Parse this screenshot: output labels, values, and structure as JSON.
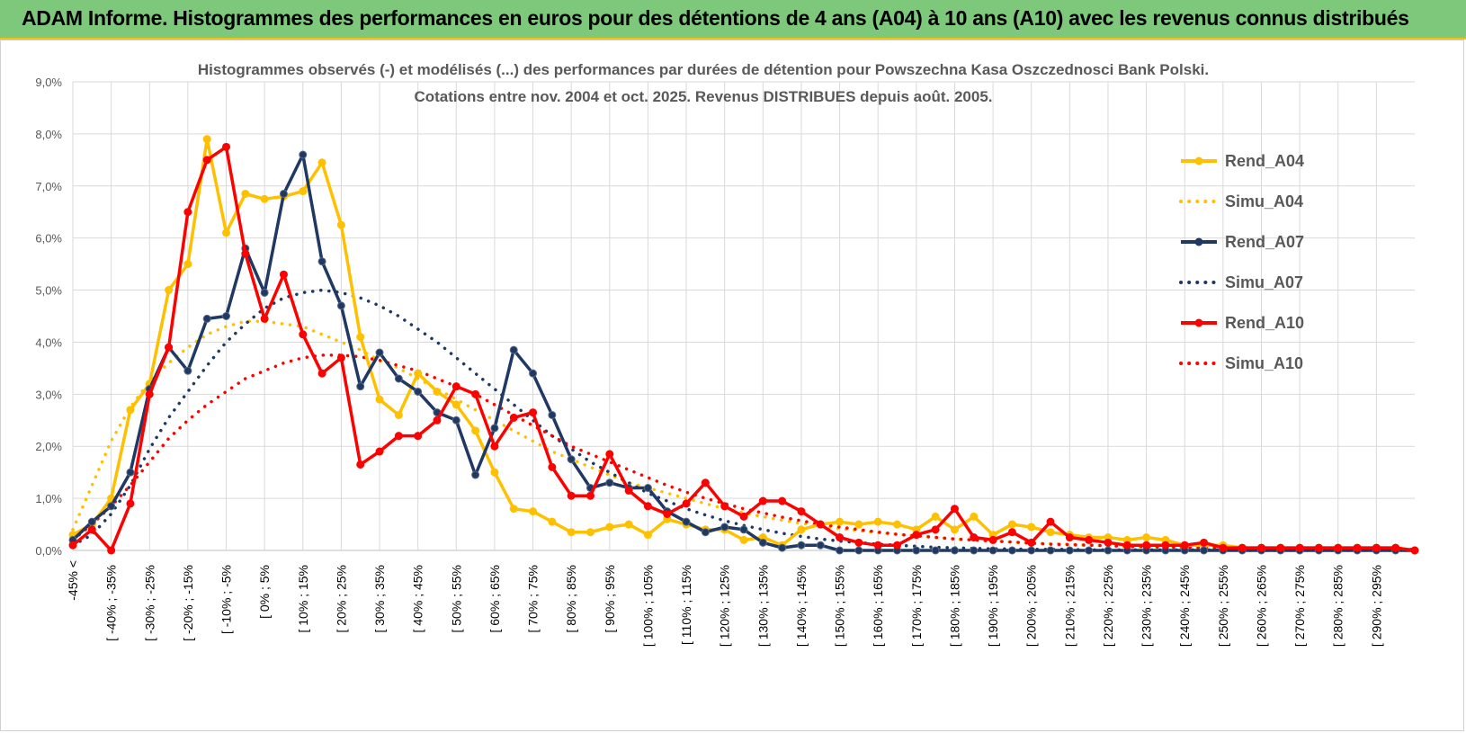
{
  "banner": {
    "title": "ADAM Informe. Histogrammes des performances en euros pour des détentions de 4 ans (A04) à 10 ans (A10) avec les revenus connus distribués"
  },
  "colors": {
    "banner_bg": "#7dc87b",
    "banner_border": "#f5c400",
    "A04": "#ffc000",
    "A07": "#1f3864",
    "A10": "#ff0000",
    "grid": "#d9d9d9"
  },
  "chart_data": {
    "type": "line",
    "title_lines": [
      "Histogrammes observés (-) et modélisés (...) des performances par durées de détention pour Powszechna Kasa Oszczednosci Bank Polski.",
      "Cotations entre nov. 2004 et oct. 2025.  Revenus DISTRIBUES depuis août. 2005."
    ],
    "ylim": [
      0,
      9
    ],
    "y_ticks": [
      "0,0%",
      "1,0%",
      "2,0%",
      "3,0%",
      "4,0%",
      "5,0%",
      "6,0%",
      "7,0%",
      "8,0%",
      "9,0%"
    ],
    "grid": true,
    "legend_position": "top-right",
    "x_labels": [
      "-45% <",
      "[ -40% ; -35%",
      "[ -30% ; -25%",
      "[ -20% ; -15%",
      "[ -10% ; -5%",
      "[ 0% ; 5%",
      "[ 10% ; 15%",
      "[ 20% ; 25%",
      "[ 30% ; 35%",
      "[ 40% ; 45%",
      "[ 50% ; 55%",
      "[ 60% ; 65%",
      "[ 70% ; 75%",
      "[ 80% ; 85%",
      "[ 90% ; 95%",
      "[ 100% ; 105%",
      "[ 110% ; 115%",
      "[ 120% ; 125%",
      "[ 130% ; 135%",
      "[ 140% ; 145%",
      "[ 150% ; 155%",
      "[ 160% ; 165%",
      "[ 170% ; 175%",
      "[ 180% ; 185%",
      "[ 190% ; 195%",
      "[ 200% ; 205%",
      "[ 210% ; 215%",
      "[ 220% ; 225%",
      "[ 230% ; 235%",
      "[ 240% ; 245%",
      "[ 250% ; 255%",
      "[ 260% ; 265%",
      "[ 270% ; 275%",
      "[ 280% ; 285%",
      "[ 290% ; 295%"
    ],
    "series": [
      {
        "name": "Rend_A04",
        "style": "solid",
        "color": "#ffc000",
        "values": [
          0.3,
          0.5,
          1.0,
          2.7,
          3.2,
          5.0,
          5.5,
          7.9,
          6.1,
          6.85,
          6.75,
          6.8,
          6.9,
          7.45,
          6.25,
          4.1,
          2.9,
          2.6,
          3.4,
          3.05,
          2.8,
          2.3,
          1.5,
          0.8,
          0.75,
          0.55,
          0.35,
          0.35,
          0.45,
          0.5,
          0.3,
          0.6,
          0.5,
          0.4,
          0.4,
          0.2,
          0.25,
          0.1,
          0.4,
          0.5,
          0.55,
          0.5,
          0.55,
          0.5,
          0.4,
          0.65,
          0.4,
          0.65,
          0.3,
          0.5,
          0.45,
          0.35,
          0.3,
          0.25,
          0.25,
          0.2,
          0.25,
          0.2,
          0.1,
          0.1,
          0.1,
          0.05,
          0.05,
          0.05,
          0.05,
          0.05,
          0.05,
          0.05,
          0.05,
          0.05,
          0.0
        ]
      },
      {
        "name": "Simu_A04",
        "style": "dotted",
        "color": "#ffc000",
        "values": [
          0.4,
          1.25,
          2.1,
          2.75,
          3.25,
          3.6,
          3.9,
          4.15,
          4.3,
          4.4,
          4.4,
          4.35,
          4.3,
          4.15,
          4.0,
          3.85,
          3.65,
          3.5,
          3.3,
          3.1,
          2.9,
          2.7,
          2.5,
          2.3,
          2.1,
          1.9,
          1.75,
          1.6,
          1.45,
          1.3,
          1.2,
          1.1,
          1.0,
          0.9,
          0.8,
          0.72,
          0.65,
          0.58,
          0.52,
          0.47,
          0.42,
          0.38,
          0.34,
          0.31,
          0.28,
          0.25,
          0.22,
          0.2,
          0.18,
          0.16,
          0.14,
          0.13,
          0.12,
          0.1,
          0.09,
          0.08,
          0.07,
          0.07,
          0.06,
          0.05,
          0.05,
          0.04,
          0.04,
          0.03,
          0.03,
          0.03,
          0.02,
          0.02,
          0.02,
          0.02,
          0.02
        ]
      },
      {
        "name": "Rend_A07",
        "style": "solid",
        "color": "#1f3864",
        "values": [
          0.2,
          0.55,
          0.85,
          1.5,
          3.1,
          3.9,
          3.45,
          4.45,
          4.5,
          5.8,
          4.95,
          6.85,
          7.6,
          5.55,
          4.7,
          3.15,
          3.8,
          3.3,
          3.05,
          2.65,
          2.5,
          1.45,
          2.35,
          3.85,
          3.4,
          2.6,
          1.75,
          1.2,
          1.3,
          1.2,
          1.2,
          0.75,
          0.55,
          0.35,
          0.45,
          0.4,
          0.15,
          0.05,
          0.1,
          0.1,
          0.0,
          0.0,
          0.0,
          0.0,
          0.0,
          0.0,
          0.0,
          0.0,
          0.0,
          0.0,
          0.0,
          0.0,
          0.0,
          0.0,
          0.0,
          0.0,
          0.0,
          0.0,
          0.0,
          0.0,
          0.0,
          0.0,
          0.0,
          0.0,
          0.0,
          0.0,
          0.0,
          0.0,
          0.0,
          0.0,
          0.0
        ]
      },
      {
        "name": "Simu_A07",
        "style": "dotted",
        "color": "#1f3864",
        "values": [
          0.1,
          0.3,
          0.7,
          1.25,
          1.95,
          2.55,
          3.05,
          3.55,
          4.0,
          4.35,
          4.65,
          4.85,
          4.95,
          5.0,
          4.95,
          4.85,
          4.7,
          4.5,
          4.25,
          4.0,
          3.7,
          3.4,
          3.1,
          2.8,
          2.5,
          2.2,
          1.95,
          1.7,
          1.5,
          1.3,
          1.1,
          0.95,
          0.8,
          0.68,
          0.57,
          0.48,
          0.4,
          0.33,
          0.27,
          0.22,
          0.18,
          0.15,
          0.12,
          0.1,
          0.08,
          0.06,
          0.05,
          0.04,
          0.03,
          0.03,
          0.02,
          0.02,
          0.02,
          0.01,
          0.01,
          0.01,
          0.01,
          0.01,
          0.01,
          0.01,
          0.01,
          0.0,
          0.0,
          0.0,
          0.0,
          0.0,
          0.0,
          0.0,
          0.0,
          0.0,
          0.0
        ]
      },
      {
        "name": "Rend_A10",
        "style": "solid",
        "color": "#ff0000",
        "values": [
          0.1,
          0.4,
          0.0,
          0.9,
          3.0,
          3.9,
          6.5,
          7.5,
          7.75,
          5.7,
          4.45,
          5.3,
          4.15,
          3.4,
          3.7,
          1.65,
          1.9,
          2.2,
          2.2,
          2.5,
          3.15,
          3.0,
          2.0,
          2.55,
          2.65,
          1.6,
          1.05,
          1.05,
          1.85,
          1.15,
          0.85,
          0.7,
          0.9,
          1.3,
          0.85,
          0.65,
          0.95,
          0.95,
          0.75,
          0.5,
          0.25,
          0.15,
          0.1,
          0.1,
          0.3,
          0.4,
          0.8,
          0.25,
          0.2,
          0.35,
          0.15,
          0.55,
          0.25,
          0.2,
          0.15,
          0.1,
          0.1,
          0.1,
          0.1,
          0.15,
          0.05,
          0.05,
          0.05,
          0.05,
          0.05,
          0.05,
          0.05,
          0.05,
          0.05,
          0.05,
          0.0
        ]
      },
      {
        "name": "Simu_A10",
        "style": "dotted",
        "color": "#ff0000",
        "values": [
          0.2,
          0.5,
          0.85,
          1.25,
          1.7,
          2.15,
          2.5,
          2.8,
          3.05,
          3.3,
          3.45,
          3.6,
          3.7,
          3.75,
          3.75,
          3.72,
          3.65,
          3.55,
          3.45,
          3.3,
          3.15,
          3.0,
          2.8,
          2.6,
          2.4,
          2.2,
          2.0,
          1.85,
          1.7,
          1.55,
          1.4,
          1.25,
          1.12,
          1.0,
          0.9,
          0.8,
          0.72,
          0.64,
          0.57,
          0.5,
          0.45,
          0.4,
          0.35,
          0.31,
          0.28,
          0.25,
          0.22,
          0.2,
          0.18,
          0.16,
          0.14,
          0.12,
          0.11,
          0.1,
          0.09,
          0.08,
          0.07,
          0.06,
          0.06,
          0.05,
          0.05,
          0.04,
          0.04,
          0.04,
          0.03,
          0.03,
          0.03,
          0.03,
          0.02,
          0.02,
          0.02
        ]
      }
    ]
  }
}
